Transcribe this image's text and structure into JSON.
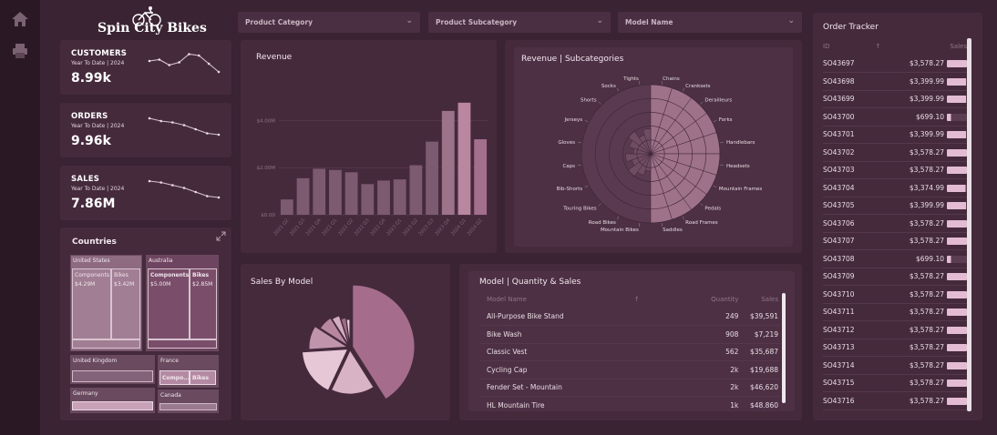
{
  "brand": {
    "name": "Spin City Bikes",
    "logo": "bicycle-rider-icon"
  },
  "nav": {
    "icons": [
      "home-icon",
      "printer-icon"
    ]
  },
  "filters": [
    {
      "label": "Product Category"
    },
    {
      "label": "Product Subcategory"
    },
    {
      "label": "Model Name"
    }
  ],
  "kpis": [
    {
      "title": "CUSTOMERS",
      "subtitle": "Year To Date | 2024",
      "value": "8.99k",
      "sparkline": [
        0.4,
        0.35,
        0.55,
        0.45,
        0.15,
        0.2,
        0.5,
        0.8
      ]
    },
    {
      "title": "ORDERS",
      "subtitle": "Year To Date | 2024",
      "value": "9.96k",
      "sparkline": [
        0.2,
        0.3,
        0.35,
        0.45,
        0.6,
        0.75,
        0.8
      ]
    },
    {
      "title": "SALES",
      "subtitle": "Year To Date | 2024",
      "value": "7.86M",
      "sparkline": [
        0.2,
        0.25,
        0.35,
        0.45,
        0.6,
        0.75,
        0.8
      ]
    }
  ],
  "countries": {
    "title": "Countries",
    "expand_icon": "expand-icon",
    "us": {
      "name": "United States",
      "components": "Components",
      "components_value": "$4.29M",
      "bikes": "Bikes",
      "bikes_value": "$3.42M"
    },
    "au": {
      "name": "Australia",
      "components": "Components",
      "components_value": "$5.00M",
      "bikes": "Bikes",
      "bikes_value": "$2.85M"
    },
    "uk": {
      "name": "United Kingdom"
    },
    "fr": {
      "name": "France",
      "components": "Compo...",
      "bikes": "Bikes"
    },
    "de": {
      "name": "Germany"
    },
    "ca": {
      "name": "Canada"
    }
  },
  "chart_data": [
    {
      "type": "bar",
      "title": "Revenue",
      "categories": [
        "2021 Q2",
        "2021 Q3",
        "2021 Q4",
        "2022 Q1",
        "2022 Q2",
        "2022 Q3",
        "2022 Q4",
        "2023 Q1",
        "2023 Q2",
        "2023 Q3",
        "2023 Q4",
        "2024 Q1",
        "2024 Q2"
      ],
      "values": [
        0.65,
        1.55,
        1.95,
        1.9,
        1.8,
        1.3,
        1.45,
        1.5,
        2.1,
        3.1,
        4.4,
        4.75,
        3.2
      ],
      "ytick_labels": [
        "$0.00",
        "$2.00M",
        "$4.00M"
      ],
      "ylim": [
        0,
        5.4
      ],
      "colors": {
        "bars": "#7c5a70",
        "highlight": "#b9879f"
      }
    },
    {
      "type": "radial",
      "title": "Revenue | Subcategories",
      "categories": [
        "Chains",
        "Cranksets",
        "Derailleurs",
        "Forks",
        "Handlebars",
        "Headsets",
        "Mountain Frames",
        "Pedals",
        "Road Frames",
        "Saddles",
        "Mountain Bikes",
        "Road Bikes",
        "Touring Bikes",
        "Bib-Shorts",
        "Caps",
        "Gloves",
        "Jerseys",
        "Shorts",
        "Socks",
        "Tights"
      ]
    },
    {
      "type": "pie",
      "title": "Sales By Model",
      "values": [
        41,
        16,
        17,
        10,
        7,
        4,
        3,
        2
      ],
      "colors": [
        "#a56d8b",
        "#d8b2c5",
        "#e5c7d6",
        "#c095ab",
        "#b8879f",
        "#d3aec0",
        "#9d6b86",
        "#e8cfdb"
      ]
    }
  ],
  "model_table": {
    "title": "Model | Quantity & Sales",
    "headers": [
      "Model Name",
      "Quantity",
      "Sales"
    ],
    "rows": [
      [
        "All-Purpose Bike Stand",
        "249",
        "$39,591"
      ],
      [
        "Bike Wash",
        "908",
        "$7,219"
      ],
      [
        "Classic Vest",
        "562",
        "$35,687"
      ],
      [
        "Cycling Cap",
        "2k",
        "$19,688"
      ],
      [
        "Fender Set - Mountain",
        "2k",
        "$46,620"
      ],
      [
        "HL Mountain Tire",
        "1k",
        "$48,860"
      ]
    ]
  },
  "order_tracker": {
    "title": "Order Tracker",
    "headers": [
      "ID",
      "Sales"
    ],
    "rows": [
      [
        "SO43697",
        "$3,578.27",
        1.0
      ],
      [
        "SO43698",
        "$3,399.99",
        0.95
      ],
      [
        "SO43699",
        "$3,399.99",
        0.95
      ],
      [
        "SO43700",
        "$699.10",
        0.2
      ],
      [
        "SO43701",
        "$3,399.99",
        0.95
      ],
      [
        "SO43702",
        "$3,578.27",
        1.0
      ],
      [
        "SO43703",
        "$3,578.27",
        1.0
      ],
      [
        "SO43704",
        "$3,374.99",
        0.94
      ],
      [
        "SO43705",
        "$3,399.99",
        0.95
      ],
      [
        "SO43706",
        "$3,578.27",
        1.0
      ],
      [
        "SO43707",
        "$3,578.27",
        1.0
      ],
      [
        "SO43708",
        "$699.10",
        0.2
      ],
      [
        "SO43709",
        "$3,578.27",
        1.0
      ],
      [
        "SO43710",
        "$3,578.27",
        1.0
      ],
      [
        "SO43711",
        "$3,578.27",
        1.0
      ],
      [
        "SO43712",
        "$3,578.27",
        1.0
      ],
      [
        "SO43713",
        "$3,578.27",
        1.0
      ],
      [
        "SO43714",
        "$3,578.27",
        1.0
      ],
      [
        "SO43715",
        "$3,578.27",
        1.0
      ],
      [
        "SO43716",
        "$3,578.27",
        1.0
      ]
    ]
  }
}
